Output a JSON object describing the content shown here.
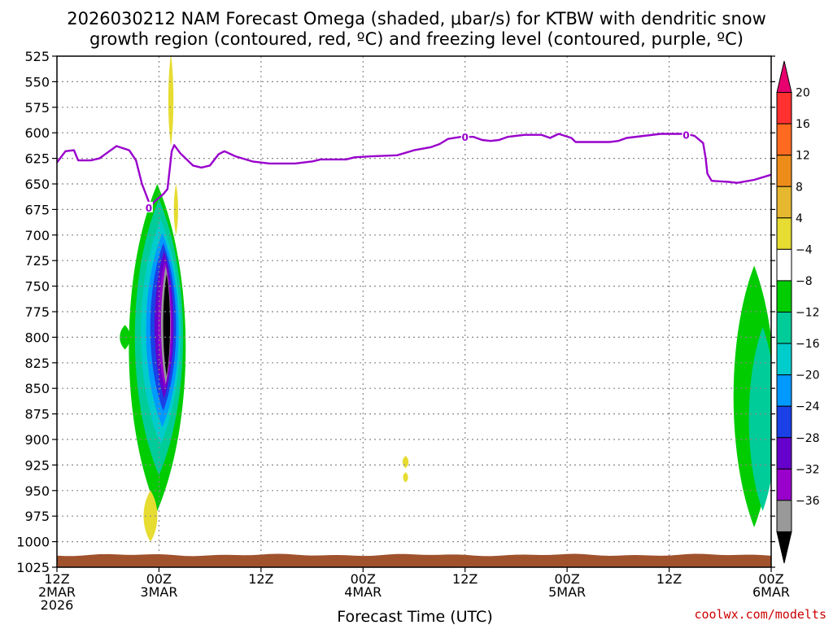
{
  "chart_data": {
    "type": "heatmap",
    "title_lines": [
      "2026030212 NAM Forecast Omega (shaded, μbar/s) for KTBW with dendritic snow",
      "growth region (contoured, red, ºC) and freezing level (contoured, purple, ºC)"
    ],
    "xlabel": "Forecast Time (UTC)",
    "ylabel": "",
    "x_ticks": [
      {
        "hour": 0,
        "lines": [
          "12Z",
          "2MAR",
          "2026"
        ]
      },
      {
        "hour": 12,
        "lines": [
          "00Z",
          "3MAR"
        ]
      },
      {
        "hour": 24,
        "lines": [
          "12Z"
        ]
      },
      {
        "hour": 36,
        "lines": [
          "00Z",
          "4MAR"
        ]
      },
      {
        "hour": 48,
        "lines": [
          "12Z"
        ]
      },
      {
        "hour": 60,
        "lines": [
          "00Z",
          "5MAR"
        ]
      },
      {
        "hour": 72,
        "lines": [
          "12Z"
        ]
      },
      {
        "hour": 84,
        "lines": [
          "00Z",
          "6MAR"
        ]
      }
    ],
    "xlim": [
      0,
      84
    ],
    "y_ticks": [
      525,
      550,
      575,
      600,
      625,
      650,
      675,
      700,
      725,
      750,
      775,
      800,
      825,
      850,
      875,
      900,
      925,
      950,
      975,
      1000,
      1025
    ],
    "ylim": [
      525,
      1025
    ],
    "grid": true,
    "freezing_level": {
      "name": "Freezing level (0 ºC)",
      "color": "#9900cc",
      "label": "0",
      "label_positions": [
        [
          10.8,
          673
        ],
        [
          48.0,
          604
        ],
        [
          74.0,
          602
        ]
      ],
      "points": [
        [
          0,
          629
        ],
        [
          1,
          618
        ],
        [
          2,
          617
        ],
        [
          2.5,
          627
        ],
        [
          4,
          627
        ],
        [
          5,
          625
        ],
        [
          7,
          613
        ],
        [
          8.5,
          617
        ],
        [
          9.3,
          627
        ],
        [
          10,
          650
        ],
        [
          10.5,
          661
        ],
        [
          11,
          672
        ],
        [
          11.5,
          667
        ],
        [
          12.5,
          660
        ],
        [
          13,
          655
        ],
        [
          13.5,
          618
        ],
        [
          13.8,
          612
        ],
        [
          14.5,
          620
        ],
        [
          16,
          632
        ],
        [
          17,
          634
        ],
        [
          18,
          632
        ],
        [
          19,
          621
        ],
        [
          19.7,
          618
        ],
        [
          21,
          623
        ],
        [
          23,
          628
        ],
        [
          25,
          630
        ],
        [
          28,
          630
        ],
        [
          30,
          628
        ],
        [
          31,
          626
        ],
        [
          34,
          626
        ],
        [
          35,
          624
        ],
        [
          37,
          623
        ],
        [
          40,
          622
        ],
        [
          42,
          617
        ],
        [
          44,
          614
        ],
        [
          45,
          611
        ],
        [
          46,
          606
        ],
        [
          47.5,
          604
        ],
        [
          49,
          604
        ],
        [
          50,
          607
        ],
        [
          51,
          608
        ],
        [
          52,
          607
        ],
        [
          53,
          604
        ],
        [
          55,
          602
        ],
        [
          57,
          602
        ],
        [
          58,
          605
        ],
        [
          59,
          601
        ],
        [
          60.5,
          605
        ],
        [
          61,
          609
        ],
        [
          63,
          609
        ],
        [
          65,
          609
        ],
        [
          66,
          608
        ],
        [
          67,
          605
        ],
        [
          69,
          603
        ],
        [
          71,
          601
        ],
        [
          74,
          601
        ],
        [
          75,
          603
        ],
        [
          76,
          610
        ],
        [
          76.3,
          625
        ],
        [
          76.5,
          640
        ],
        [
          77,
          647
        ],
        [
          79,
          648
        ],
        [
          80,
          649
        ],
        [
          82,
          646
        ],
        [
          84,
          641
        ]
      ]
    },
    "omega_regions": [
      {
        "level": "-4",
        "color": "#00cc00",
        "center": [
          11.8,
          810
        ],
        "half_width": 3.3,
        "half_height": 160
      },
      {
        "level": "-4",
        "color": "#00cc00",
        "center": [
          8.0,
          800
        ],
        "half_width": 0.6,
        "half_height": 12
      },
      {
        "level": "-8",
        "color": "#00cc99",
        "center": [
          12.0,
          800
        ],
        "half_width": 2.8,
        "half_height": 135
      },
      {
        "level": "-12",
        "color": "#00cccc",
        "center": [
          12.2,
          795
        ],
        "half_width": 2.3,
        "half_height": 110
      },
      {
        "level": "-16",
        "color": "#0099ff",
        "center": [
          12.4,
          793
        ],
        "half_width": 1.9,
        "half_height": 95
      },
      {
        "level": "-20",
        "color": "#1a40e6",
        "center": [
          12.5,
          790
        ],
        "half_width": 1.5,
        "half_height": 82
      },
      {
        "level": "-24",
        "color": "#6600cc",
        "center": [
          12.6,
          788
        ],
        "half_width": 1.1,
        "half_height": 72
      },
      {
        "level": "-28",
        "color": "#9900cc",
        "center": [
          12.7,
          788
        ],
        "half_width": 0.8,
        "half_height": 62
      },
      {
        "level": "-32",
        "color": "#999999",
        "center": [
          12.8,
          788
        ],
        "half_width": 0.55,
        "half_height": 58
      },
      {
        "level": "-36",
        "color": "#000000",
        "center": [
          12.9,
          788
        ],
        "half_width": 0.4,
        "half_height": 50
      },
      {
        "level": "-4",
        "color": "#00cc00",
        "center": [
          82.0,
          858
        ],
        "half_width": 2.4,
        "half_height": 128
      },
      {
        "level": "-8",
        "color": "#00cc99",
        "center": [
          83.0,
          880
        ],
        "half_width": 1.6,
        "half_height": 90
      }
    ],
    "omega_positive_regions": [
      {
        "level": "4",
        "color": "#e6dc32",
        "center": [
          13.4,
          568
        ],
        "half_width": 0.3,
        "half_height": 45
      },
      {
        "level": "4",
        "color": "#e6dc32",
        "center": [
          14.0,
          675
        ],
        "half_width": 0.25,
        "half_height": 25
      },
      {
        "level": "4",
        "color": "#e6dc32",
        "center": [
          11.0,
          975
        ],
        "half_width": 0.8,
        "half_height": 25
      },
      {
        "level": "4",
        "color": "#e6dc32",
        "center": [
          41.0,
          922
        ],
        "half_width": 0.35,
        "half_height": 6
      },
      {
        "level": "4",
        "color": "#e6dc32",
        "center": [
          41.0,
          937
        ],
        "half_width": 0.3,
        "half_height": 5
      }
    ],
    "terrain": {
      "color": "#a0522d",
      "from_pressure": 1013,
      "to_pressure": 1025
    },
    "colorbar": {
      "levels": [
        "20",
        "16",
        "12",
        "8",
        "4",
        "−4",
        "−8",
        "−12",
        "−16",
        "−20",
        "−24",
        "−28",
        "−32",
        "−36"
      ],
      "colors": [
        "#e8006e",
        "#ff3030",
        "#ff6a20",
        "#ee8c1a",
        "#e6b830",
        "#e6dc32",
        "#ffffff",
        "#00cc00",
        "#00cc99",
        "#00cccc",
        "#0099ff",
        "#1a40e6",
        "#6600cc",
        "#9900cc",
        "#999999",
        "#000000"
      ]
    }
  },
  "credit": "coolwx.com/modelts"
}
